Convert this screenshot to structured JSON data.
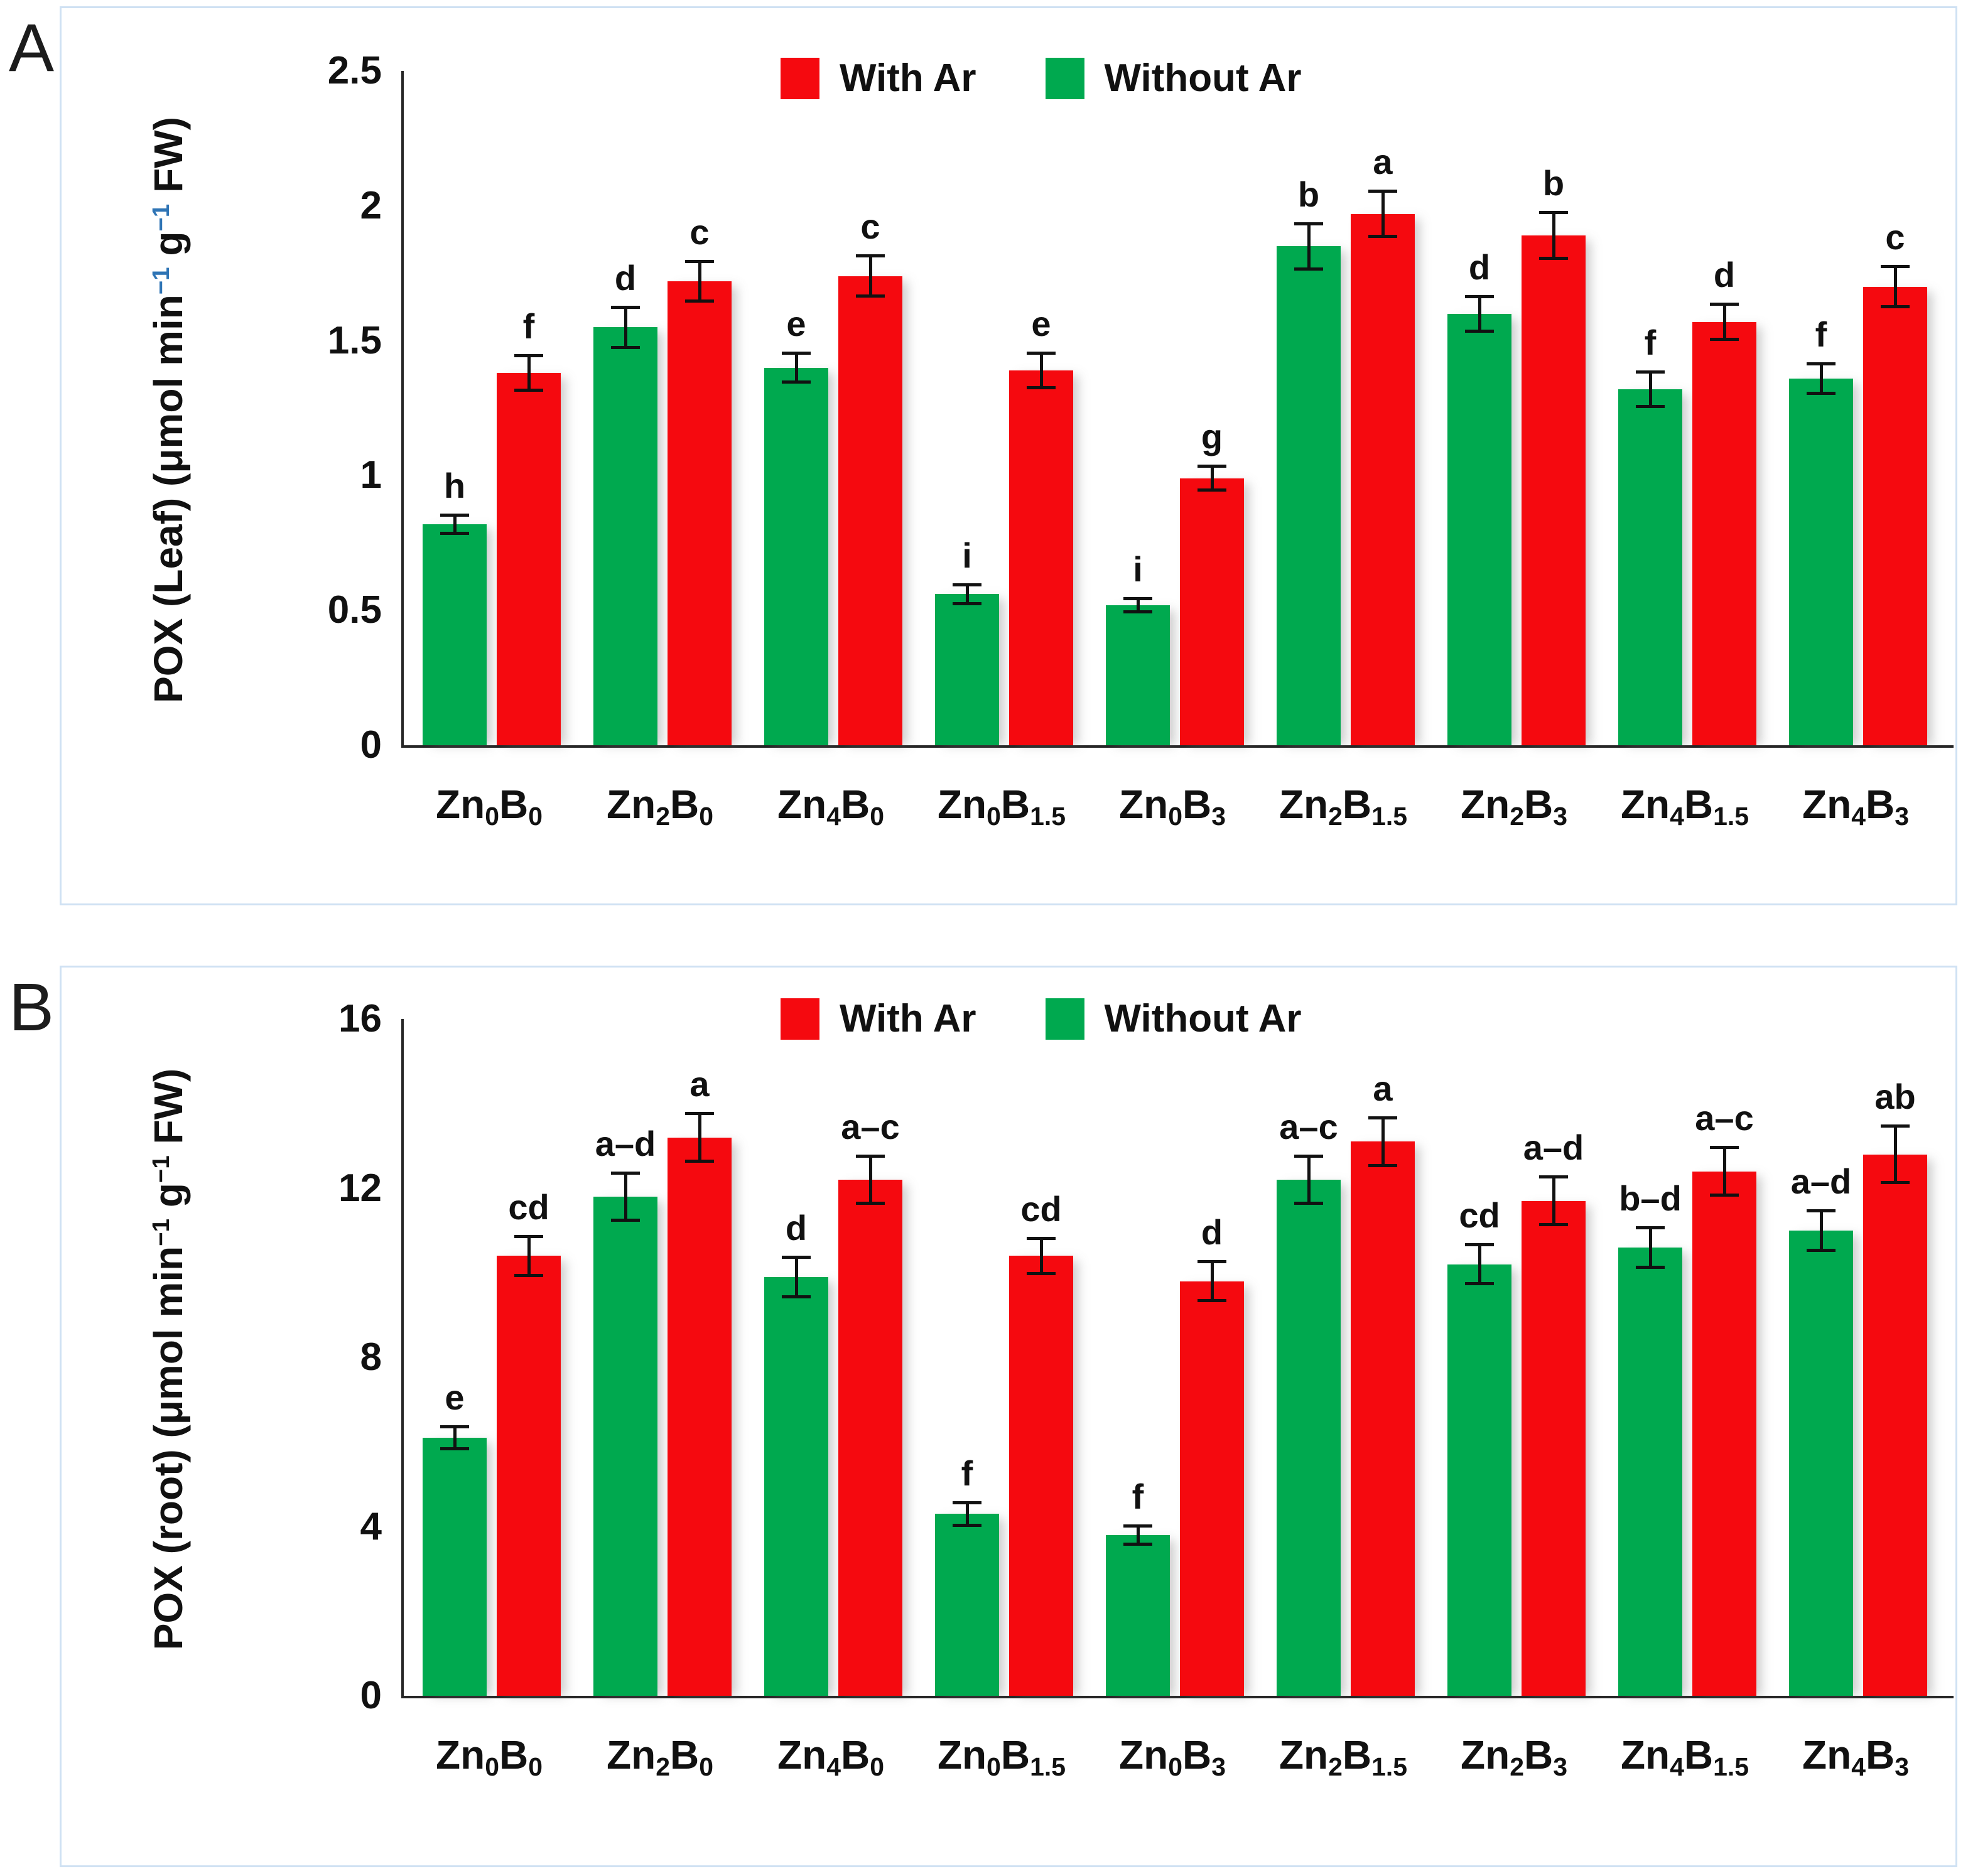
{
  "ui": {
    "panel_border_color": "#cfe1f3",
    "axis_color": "#262626",
    "background": "#ffffff",
    "with_ar_color": "#f5090f",
    "without_ar_color": "#00a94f"
  },
  "chart_data": [
    {
      "type": "bar",
      "panel": "A",
      "ylabel": {
        "text": "POX (Leaf) (μmol min−1 g−1 FW)",
        "parts": [
          [
            "POX (Leaf) (μmol min",
            0
          ],
          [
            "−1",
            1
          ],
          [
            " g",
            0
          ],
          [
            "−1",
            1
          ],
          [
            " FW)",
            0
          ]
        ],
        "sup_color": "#2e74b5"
      },
      "ylim": [
        0,
        2.5
      ],
      "yticks": [
        {
          "v": 2.5,
          "label": "2.5"
        },
        {
          "v": 2,
          "label": "2"
        },
        {
          "v": 1.5,
          "label": "1.5"
        },
        {
          "v": 1,
          "label": "1"
        },
        {
          "v": 0.5,
          "label": "0.5"
        },
        {
          "v": 0,
          "label": "0"
        }
      ],
      "grid": false,
      "legend": {
        "position": "top-center",
        "items": [
          {
            "label": "With Ar",
            "color": "#f5090f"
          },
          {
            "label": "Without Ar",
            "color": "#00a94f"
          }
        ]
      },
      "categories": [
        {
          "text": "Zn0B0",
          "parts": [
            [
              "Zn",
              0
            ],
            [
              "0",
              1
            ],
            [
              "B",
              0
            ],
            [
              "0",
              1
            ]
          ]
        },
        {
          "text": "Zn2B0",
          "parts": [
            [
              "Zn",
              0
            ],
            [
              "2",
              1
            ],
            [
              "B",
              0
            ],
            [
              "0",
              1
            ]
          ]
        },
        {
          "text": "Zn4B0",
          "parts": [
            [
              "Zn",
              0
            ],
            [
              "4",
              1
            ],
            [
              "B",
              0
            ],
            [
              "0",
              1
            ]
          ]
        },
        {
          "text": "Zn0B1.5",
          "parts": [
            [
              "Zn",
              0
            ],
            [
              "0",
              1
            ],
            [
              "B",
              0
            ],
            [
              "1.5",
              1
            ]
          ]
        },
        {
          "text": "Zn0B3",
          "parts": [
            [
              "Zn",
              0
            ],
            [
              "0",
              1
            ],
            [
              "B",
              0
            ],
            [
              "3",
              1
            ]
          ]
        },
        {
          "text": "Zn2B1.5",
          "parts": [
            [
              "Zn",
              0
            ],
            [
              "2",
              1
            ],
            [
              "B",
              0
            ],
            [
              "1.5",
              1
            ]
          ]
        },
        {
          "text": "Zn2B3",
          "parts": [
            [
              "Zn",
              0
            ],
            [
              "2",
              1
            ],
            [
              "B",
              0
            ],
            [
              "3",
              1
            ]
          ]
        },
        {
          "text": "Zn4B1.5",
          "parts": [
            [
              "Zn",
              0
            ],
            [
              "4",
              1
            ],
            [
              "B",
              0
            ],
            [
              "1.5",
              1
            ]
          ]
        },
        {
          "text": "Zn4B3",
          "parts": [
            [
              "Zn",
              0
            ],
            [
              "4",
              1
            ],
            [
              "B",
              0
            ],
            [
              "3",
              1
            ]
          ]
        }
      ],
      "series": [
        {
          "name": "Without Ar",
          "color": "#00a94f",
          "values": [
            0.82,
            1.55,
            1.4,
            0.56,
            0.52,
            1.85,
            1.6,
            1.32,
            1.36
          ],
          "errors": [
            0.04,
            0.08,
            0.06,
            0.04,
            0.03,
            0.09,
            0.07,
            0.07,
            0.06
          ],
          "letters": [
            "h",
            "d",
            "e",
            "i",
            "i",
            "b",
            "d",
            "f",
            "f"
          ]
        },
        {
          "name": "With Ar",
          "color": "#f5090f",
          "values": [
            1.38,
            1.72,
            1.74,
            1.39,
            0.99,
            1.97,
            1.89,
            1.57,
            1.7
          ],
          "errors": [
            0.07,
            0.08,
            0.08,
            0.07,
            0.05,
            0.09,
            0.09,
            0.07,
            0.08
          ],
          "letters": [
            "f",
            "c",
            "c",
            "e",
            "g",
            "a",
            "b",
            "d",
            "c"
          ]
        }
      ]
    },
    {
      "type": "bar",
      "panel": "B",
      "ylabel": {
        "text": "POX (root) (μmol min−1 g−1 FW)",
        "parts": [
          [
            "POX (root) (μmol min",
            0
          ],
          [
            "−1",
            1
          ],
          [
            " g",
            0
          ],
          [
            "−1",
            1
          ],
          [
            " FW)",
            0
          ]
        ],
        "sup_color": "#111111"
      },
      "ylim": [
        0,
        16
      ],
      "yticks": [
        {
          "v": 16,
          "label": "16"
        },
        {
          "v": 12,
          "label": "12"
        },
        {
          "v": 8,
          "label": "8"
        },
        {
          "v": 4,
          "label": "4"
        },
        {
          "v": 0,
          "label": "0"
        }
      ],
      "grid": false,
      "legend": {
        "position": "top-center",
        "items": [
          {
            "label": "With Ar",
            "color": "#f5090f"
          },
          {
            "label": "Without Ar",
            "color": "#00a94f"
          }
        ]
      },
      "categories": [
        {
          "text": "Zn0B0",
          "parts": [
            [
              "Zn",
              0
            ],
            [
              "0",
              1
            ],
            [
              "B",
              0
            ],
            [
              "0",
              1
            ]
          ]
        },
        {
          "text": "Zn2B0",
          "parts": [
            [
              "Zn",
              0
            ],
            [
              "2",
              1
            ],
            [
              "B",
              0
            ],
            [
              "0",
              1
            ]
          ]
        },
        {
          "text": "Zn4B0",
          "parts": [
            [
              "Zn",
              0
            ],
            [
              "4",
              1
            ],
            [
              "B",
              0
            ],
            [
              "0",
              1
            ]
          ]
        },
        {
          "text": "Zn0B1.5",
          "parts": [
            [
              "Zn",
              0
            ],
            [
              "0",
              1
            ],
            [
              "B",
              0
            ],
            [
              "1.5",
              1
            ]
          ]
        },
        {
          "text": "Zn0B3",
          "parts": [
            [
              "Zn",
              0
            ],
            [
              "0",
              1
            ],
            [
              "B",
              0
            ],
            [
              "3",
              1
            ]
          ]
        },
        {
          "text": "Zn2B1.5",
          "parts": [
            [
              "Zn",
              0
            ],
            [
              "2",
              1
            ],
            [
              "B",
              0
            ],
            [
              "1.5",
              1
            ]
          ]
        },
        {
          "text": "Zn2B3",
          "parts": [
            [
              "Zn",
              0
            ],
            [
              "2",
              1
            ],
            [
              "B",
              0
            ],
            [
              "3",
              1
            ]
          ]
        },
        {
          "text": "Zn4B1.5",
          "parts": [
            [
              "Zn",
              0
            ],
            [
              "4",
              1
            ],
            [
              "B",
              0
            ],
            [
              "1.5",
              1
            ]
          ]
        },
        {
          "text": "Zn4B3",
          "parts": [
            [
              "Zn",
              0
            ],
            [
              "4",
              1
            ],
            [
              "B",
              0
            ],
            [
              "3",
              1
            ]
          ]
        }
      ],
      "series": [
        {
          "name": "Without Ar",
          "color": "#00a94f",
          "values": [
            6.1,
            11.8,
            9.9,
            4.3,
            3.8,
            12.2,
            10.2,
            10.6,
            11.0
          ],
          "errors": [
            0.3,
            0.6,
            0.5,
            0.3,
            0.25,
            0.6,
            0.5,
            0.5,
            0.5
          ],
          "letters": [
            "e",
            "a–d",
            "d",
            "f",
            "f",
            "a–c",
            "cd",
            "b–d",
            "a–d"
          ]
        },
        {
          "name": "With Ar",
          "color": "#f5090f",
          "values": [
            10.4,
            13.2,
            12.2,
            10.4,
            9.8,
            13.1,
            11.7,
            12.4,
            12.8
          ],
          "errors": [
            0.5,
            0.6,
            0.6,
            0.45,
            0.5,
            0.6,
            0.6,
            0.6,
            0.7
          ],
          "letters": [
            "cd",
            "a",
            "a–c",
            "cd",
            "d",
            "a",
            "a–d",
            "a–c",
            "ab"
          ]
        }
      ]
    }
  ]
}
